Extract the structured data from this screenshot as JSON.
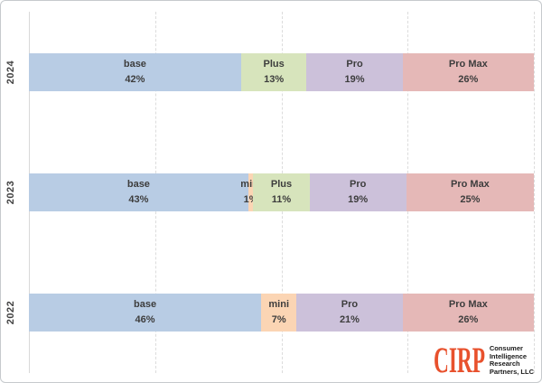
{
  "chart_data": {
    "type": "bar",
    "subtype": "100-percent-stacked-horizontal",
    "title": "",
    "xlabel": "",
    "ylabel": "",
    "legend": "none",
    "categories": [
      "2024",
      "2023",
      "2022"
    ],
    "series": [
      {
        "name": "base",
        "values": [
          42,
          43,
          46
        ]
      },
      {
        "name": "mini",
        "values": [
          0,
          1,
          7
        ]
      },
      {
        "name": "Plus",
        "values": [
          13,
          11,
          0
        ]
      },
      {
        "name": "Pro",
        "values": [
          19,
          19,
          21
        ]
      },
      {
        "name": "Pro Max",
        "values": [
          26,
          25,
          26
        ]
      }
    ],
    "rows": [
      {
        "year": "2024",
        "segments": [
          {
            "label": "base",
            "pct": 42
          },
          {
            "label": "Plus",
            "pct": 13
          },
          {
            "label": "Pro",
            "pct": 19
          },
          {
            "label": "Pro Max",
            "pct": 26
          }
        ]
      },
      {
        "year": "2023",
        "segments": [
          {
            "label": "base",
            "pct": 43
          },
          {
            "label": "mini",
            "pct": 1
          },
          {
            "label": "Plus",
            "pct": 11
          },
          {
            "label": "Pro",
            "pct": 19
          },
          {
            "label": "Pro Max",
            "pct": 25
          }
        ]
      },
      {
        "year": "2022",
        "segments": [
          {
            "label": "base",
            "pct": 46
          },
          {
            "label": "mini",
            "pct": 7
          },
          {
            "label": "Pro",
            "pct": 21
          },
          {
            "label": "Pro Max",
            "pct": 26
          }
        ]
      }
    ],
    "colors": {
      "base": "#B8CCE4",
      "mini": "#FBD5B4",
      "Plus": "#D7E4BC",
      "Pro": "#CCC1DA",
      "Pro Max": "#E5B8B7"
    },
    "label_text_color": "#3D3D3D",
    "axis": {
      "min": 0,
      "max": 100,
      "gridlines_pct": [
        25,
        50,
        75,
        100
      ],
      "gridline_style": "dashed",
      "gridline_color": "#DCDCDC"
    }
  },
  "logo": {
    "wordmark": "CIRP",
    "color": "#E8512D",
    "lines": [
      "Consumer",
      "Intelligence",
      "Research",
      "Partners, LLC"
    ]
  }
}
